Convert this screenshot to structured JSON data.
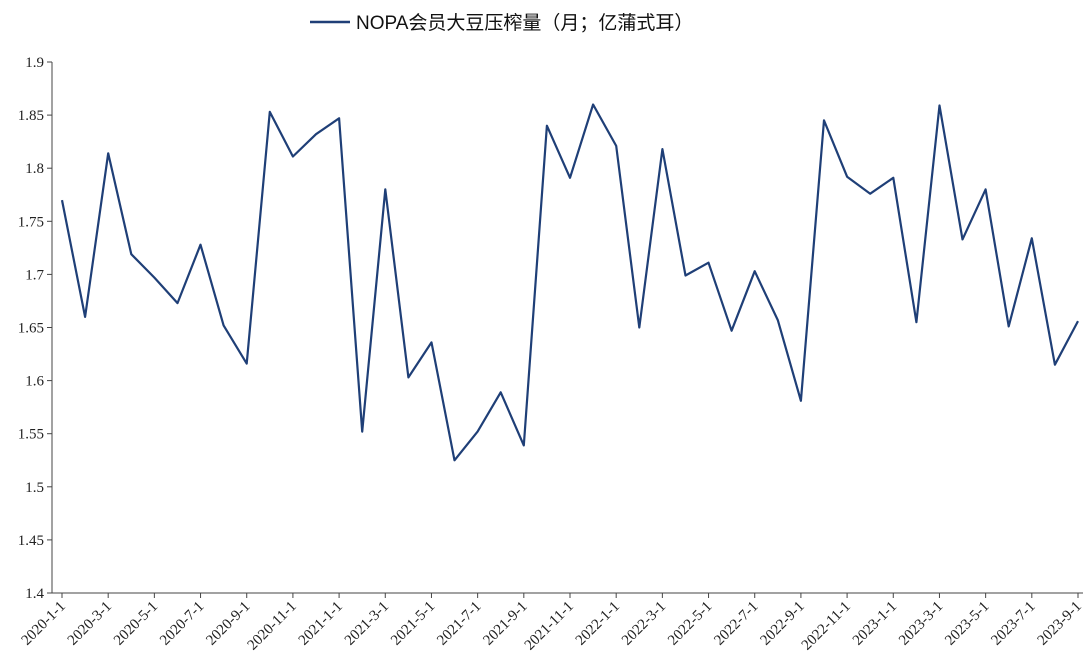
{
  "chart_data": {
    "type": "line",
    "categories": [
      "2020-1-1",
      null,
      "2020-3-1",
      null,
      "2020-5-1",
      null,
      "2020-7-1",
      null,
      "2020-9-1",
      null,
      "2020-11-1",
      null,
      "2021-1-1",
      null,
      "2021-3-1",
      null,
      "2021-5-1",
      null,
      "2021-7-1",
      null,
      "2021-9-1",
      null,
      "2021-11-1",
      null,
      "2022-1-1",
      null,
      "2022-3-1",
      null,
      "2022-5-1",
      null,
      "2022-7-1",
      null,
      "2022-9-1",
      null,
      "2022-11-1",
      null,
      "2023-1-1",
      null,
      "2023-3-1",
      null,
      "2023-5-1",
      null,
      "2023-7-1",
      null,
      "2023-9-1"
    ],
    "series": [
      {
        "name": "NOPA会员大豆压榨量（月；亿蒲式耳）",
        "color": "#1f3f77",
        "values": [
          1.77,
          1.66,
          1.814,
          1.719,
          1.697,
          1.673,
          1.728,
          1.652,
          1.616,
          1.853,
          1.811,
          1.832,
          1.847,
          1.552,
          1.78,
          1.603,
          1.636,
          1.525,
          1.552,
          1.589,
          1.539,
          1.84,
          1.791,
          1.86,
          1.821,
          1.65,
          1.818,
          1.699,
          1.711,
          1.647,
          1.703,
          1.657,
          1.581,
          1.845,
          1.792,
          1.776,
          1.791,
          1.655,
          1.859,
          1.733,
          1.78,
          1.651,
          1.734,
          1.615,
          1.656
        ]
      }
    ],
    "ylim": [
      1.4,
      1.9
    ],
    "yticks": [
      1.4,
      1.45,
      1.5,
      1.55,
      1.6,
      1.65,
      1.7,
      1.75,
      1.8,
      1.85,
      1.9
    ],
    "grid": false,
    "legend": "top"
  }
}
